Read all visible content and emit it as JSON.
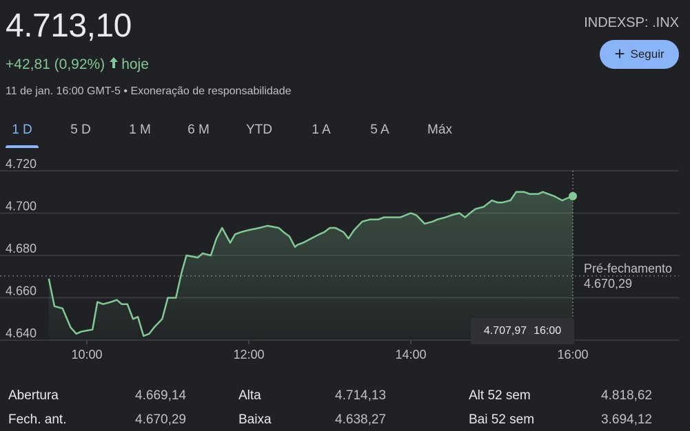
{
  "quote": {
    "price": "4.713,10",
    "change": "+42,81 (0,92%)",
    "period": "hoje",
    "timestamp": "11 de jan. 16:00 GMT-5",
    "separator": "•",
    "disclaimer": "Exoneração de responsabilidade",
    "ticker": "INDEXSP: .INX",
    "follow_label": "Seguir",
    "colors": {
      "positive": "#81c995",
      "accent": "#8ab4f8"
    }
  },
  "tabs": [
    "1 D",
    "5 D",
    "1 M",
    "6 M",
    "YTD",
    "1 A",
    "5 A",
    "Máx"
  ],
  "active_tab": "1 D",
  "tooltip": {
    "value": "4.707,97",
    "time": "16:00"
  },
  "previous_close": {
    "label": "Pré-fechamento",
    "value": "4.670,29"
  },
  "chart_data": {
    "type": "area",
    "ylim": [
      4640,
      4720
    ],
    "yticks": [
      4640,
      4660,
      4680,
      4700,
      4720
    ],
    "ytick_labels": [
      "4.640",
      "4.660",
      "4.680",
      "4.700",
      "4.720"
    ],
    "xlim": [
      9.5,
      17.5
    ],
    "xticks": [
      10,
      12,
      14,
      16
    ],
    "xtick_labels": [
      "10:00",
      "12:00",
      "14:00",
      "16:00"
    ],
    "reference_line": 4670.29,
    "series": [
      {
        "x": [
          9.53,
          9.6,
          9.7,
          9.8,
          9.87,
          9.93,
          10.07,
          10.13,
          10.2,
          10.3,
          10.37,
          10.43,
          10.5,
          10.57,
          10.63,
          10.7,
          10.77,
          10.83,
          10.93,
          11.0,
          11.1,
          11.17,
          11.23,
          11.37,
          11.43,
          11.53,
          11.6,
          11.67,
          11.77,
          11.83,
          11.9,
          12.0,
          12.13,
          12.23,
          12.37,
          12.43,
          12.5,
          12.57,
          12.6,
          12.67,
          12.77,
          12.87,
          12.93,
          13.0,
          13.07,
          13.17,
          13.23,
          13.3,
          13.4,
          13.5,
          13.6,
          13.67,
          13.77,
          13.87,
          14.0,
          14.07,
          14.17,
          14.27,
          14.33,
          14.43,
          14.5,
          14.6,
          14.67,
          14.73,
          14.8,
          14.9,
          15.0,
          15.07,
          15.13,
          15.23,
          15.3,
          15.4,
          15.47,
          15.57,
          15.63,
          15.7,
          15.77,
          15.87,
          15.93,
          16.0
        ],
        "values": [
          4669,
          4656,
          4655,
          4646,
          4643,
          4644,
          4645,
          4658,
          4657,
          4658,
          4659,
          4657,
          4657,
          4650,
          4651,
          4642,
          4643,
          4646,
          4650,
          4660,
          4660,
          4672,
          4680,
          4679,
          4681,
          4680,
          4688,
          4693,
          4686,
          4690,
          4691,
          4692,
          4693,
          4694,
          4693,
          4691,
          4689,
          4684,
          4685,
          4686,
          4688,
          4690,
          4691,
          4693,
          4693,
          4691,
          4688,
          4692,
          4696,
          4697,
          4697,
          4698,
          4698,
          4698,
          4700,
          4699,
          4695,
          4696,
          4697,
          4698,
          4699,
          4700,
          4698,
          4700,
          4702,
          4703,
          4706,
          4705,
          4705,
          4706,
          4710,
          4710,
          4709,
          4709,
          4710,
          4709,
          4708,
          4706,
          4707,
          4708
        ]
      }
    ]
  },
  "stats": [
    {
      "label": "Abertura",
      "value": "4.669,14"
    },
    {
      "label": "Fech. ant.",
      "value": "4.670,29"
    },
    {
      "label": "Alta",
      "value": "4.714,13"
    },
    {
      "label": "Baixa",
      "value": "4.638,27"
    },
    {
      "label": "Alt 52 sem",
      "value": "4.818,62"
    },
    {
      "label": "Bai 52 sem",
      "value": "3.694,12"
    }
  ]
}
